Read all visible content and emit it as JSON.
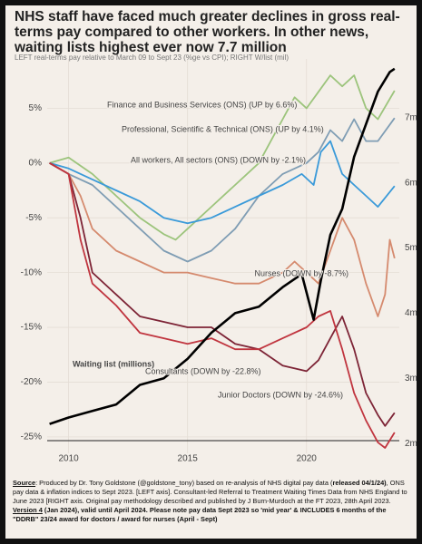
{
  "chart_data": {
    "type": "line",
    "title": "NHS staff have faced much greater declines in gross real-terms pay compared to other workers. In other news, waiting lists highest ever now 7.7 million",
    "subtitle": "LEFT real-terms pay relative to March 09 to Sept 23 (%ge vs CPI); RIGHT W/list (mil)",
    "xlim": [
      2009.1,
      2023.9
    ],
    "xticks": [
      2010,
      2015,
      2020
    ],
    "ylim": [
      -26.5,
      9.5
    ],
    "yticks": [
      {
        "value": 5,
        "label": "5%"
      },
      {
        "value": 0,
        "label": "0%"
      },
      {
        "value": -5,
        "label": "-5%"
      },
      {
        "value": -10,
        "label": "-10%"
      },
      {
        "value": -15,
        "label": "-15%"
      },
      {
        "value": -20,
        "label": "-20%"
      },
      {
        "value": -25,
        "label": "-25%"
      }
    ],
    "y2lim": [
      1.85,
      7.9
    ],
    "y2ticks": [
      {
        "value": 7,
        "label": "7m"
      },
      {
        "value": 6,
        "label": "6m"
      },
      {
        "value": 5,
        "label": "5m"
      },
      {
        "value": 4,
        "label": "4m"
      },
      {
        "value": 3,
        "label": "3m"
      },
      {
        "value": 2,
        "label": "2m"
      }
    ],
    "grid": true,
    "series": [
      {
        "name": "Finance and Business Services (ONS) (UP by 6.6%)",
        "color": "#9cc47c",
        "x": [
          2009.2,
          2010,
          2011,
          2012,
          2013,
          2014,
          2014.5,
          2015,
          2016,
          2017,
          2018,
          2018.5,
          2019,
          2019.5,
          2020,
          2020.5,
          2021,
          2021.5,
          2022,
          2022.5,
          2023,
          2023.7
        ],
        "values": [
          0,
          0.5,
          -1,
          -3,
          -5,
          -6.5,
          -7,
          -6,
          -4,
          -2,
          0,
          2,
          4,
          6,
          5,
          6.5,
          8,
          7,
          8,
          5,
          4,
          6.6
        ]
      },
      {
        "name": "Professional, Scientific & Technical (ONS) (UP by 4.1%)",
        "color": "#7f9db4",
        "x": [
          2009.2,
          2010,
          2011,
          2012,
          2013,
          2014,
          2015,
          2016,
          2017,
          2018,
          2019,
          2020,
          2020.5,
          2021,
          2021.5,
          2022,
          2022.5,
          2023,
          2023.7
        ],
        "values": [
          0,
          -1,
          -2,
          -4,
          -6,
          -8,
          -9,
          -8,
          -6,
          -3,
          -1,
          0,
          1,
          3,
          2,
          4,
          2,
          2,
          4.1
        ]
      },
      {
        "name": "All workers, All sectors (ONS) (DOWN by -2.1%)",
        "color": "#3a9ad9",
        "x": [
          2009.2,
          2010,
          2011,
          2012,
          2013,
          2014,
          2015,
          2016,
          2017,
          2018,
          2019,
          2019.8,
          2020.3,
          2020.6,
          2021,
          2021.5,
          2022,
          2022.5,
          2023,
          2023.7
        ],
        "values": [
          0,
          -0.5,
          -1.5,
          -2.5,
          -3.5,
          -5,
          -5.5,
          -5,
          -4,
          -3,
          -2,
          -1,
          -2,
          1,
          2,
          -1,
          -2,
          -3,
          -4,
          -2.1
        ]
      },
      {
        "name": "Nurses (DOWN by -8.7%)",
        "color": "#d58a6e",
        "x": [
          2009.2,
          2010,
          2010.5,
          2011,
          2012,
          2013,
          2014,
          2015,
          2016,
          2017,
          2018,
          2019,
          2019.5,
          2020,
          2020.5,
          2021,
          2021.5,
          2022,
          2022.5,
          2023,
          2023.3,
          2023.5,
          2023.7
        ],
        "values": [
          0,
          -1,
          -3,
          -6,
          -8,
          -9,
          -10,
          -10,
          -10.5,
          -11,
          -11,
          -10,
          -9,
          -10,
          -11,
          -8,
          -5,
          -7,
          -11,
          -14,
          -12,
          -7,
          -8.7
        ]
      },
      {
        "name": "Consultants (DOWN by -22.8%)",
        "color": "#7d2436",
        "x": [
          2009.2,
          2010,
          2010.5,
          2011,
          2012,
          2013,
          2014,
          2015,
          2016,
          2017,
          2018,
          2019,
          2020,
          2020.5,
          2021,
          2021.5,
          2022,
          2022.5,
          2023,
          2023.3,
          2023.7
        ],
        "values": [
          0,
          -1,
          -5,
          -10,
          -12,
          -14,
          -14.5,
          -15,
          -15,
          -16.5,
          -17,
          -18.5,
          -19,
          -18,
          -16,
          -14,
          -17,
          -21,
          -23,
          -24,
          -22.8
        ]
      },
      {
        "name": "Junior Doctors (DOWN by -24.6%)",
        "color": "#c0353f",
        "x": [
          2009.2,
          2010,
          2010.5,
          2011,
          2012,
          2013,
          2014,
          2015,
          2016,
          2017,
          2018,
          2019,
          2020,
          2020.5,
          2021,
          2021.5,
          2022,
          2022.5,
          2023,
          2023.3,
          2023.7
        ],
        "values": [
          0,
          -1,
          -7,
          -11,
          -13,
          -15.5,
          -16,
          -16.5,
          -16,
          -17,
          -17,
          -16,
          -15,
          -14,
          -13.5,
          -17,
          -21,
          -23.5,
          -25.5,
          -26,
          -24.6
        ]
      },
      {
        "name": "Waiting list (millions)",
        "color": "#000000",
        "axis": "y2",
        "x": [
          2009.2,
          2010,
          2011,
          2012,
          2013,
          2014,
          2015,
          2016,
          2017,
          2018,
          2019,
          2019.8,
          2020.3,
          2020.6,
          2021,
          2021.5,
          2022,
          2022.5,
          2023,
          2023.5,
          2023.7
        ],
        "values": [
          2.3,
          2.4,
          2.5,
          2.6,
          2.9,
          3.0,
          3.3,
          3.7,
          4.0,
          4.1,
          4.4,
          4.6,
          3.9,
          4.5,
          5.2,
          5.6,
          6.4,
          6.9,
          7.4,
          7.7,
          7.75
        ]
      }
    ]
  },
  "footer": {
    "p1": [
      "Source",
      ": Produced by Dr. Tony Goldstone (@goldstone_tony) based on re-analysis of NHS digital pay data (",
      "released 04/1/24)",
      ", ONS pay data & inflation indices to Sept 2023. [LEFT axis]. Consultant-led Referral to Treatment Waiting Times Data from NHS England to June 2023 [RIGHT axis. Original pay methodology described and published by J Burn-Murdoch at the FT 2023, 28th April 2023."
    ],
    "p2": [
      "Version 4",
      " (Jan 2024), valid until April 2024. Please note pay data Sept 2023 so 'mid year' & INCLUDES 6 months of the \"DDRB\" 23/24 award  for doctors / award for nurses (April - Sept)"
    ]
  }
}
